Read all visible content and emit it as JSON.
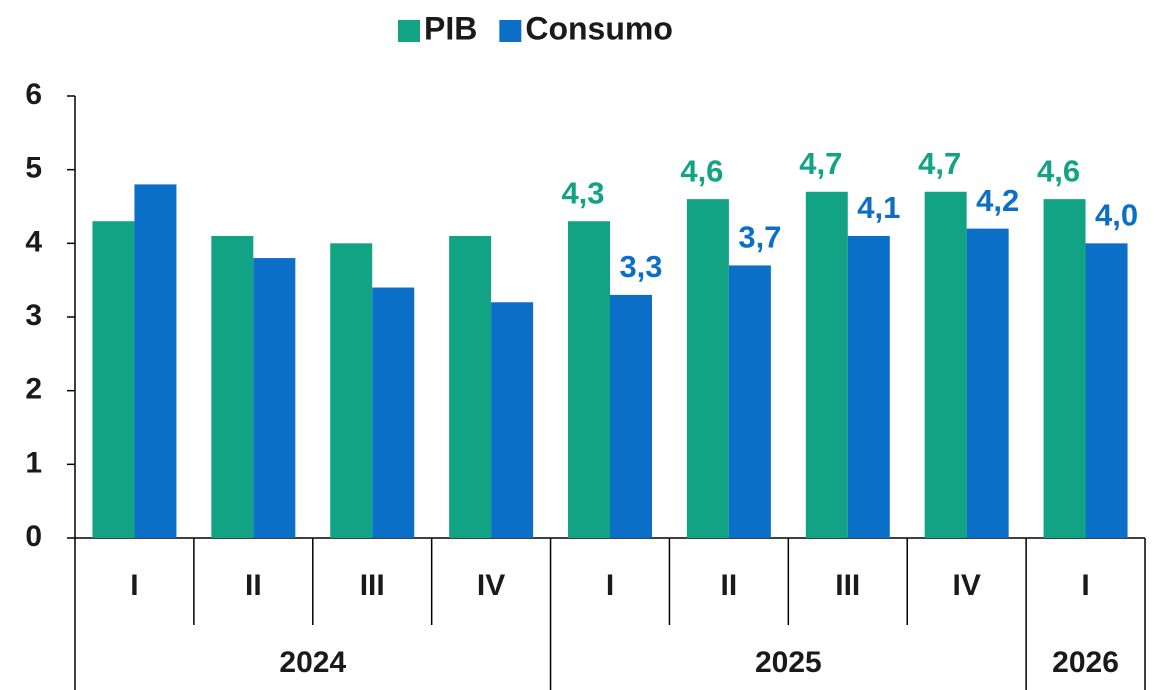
{
  "chart_data": {
    "type": "bar",
    "categories": [
      "I",
      "II",
      "III",
      "IV",
      "I",
      "II",
      "III",
      "IV",
      "I"
    ],
    "years": [
      "2024",
      null,
      null,
      null,
      "2025",
      null,
      null,
      null,
      "2026"
    ],
    "series": [
      {
        "name": "PIB",
        "color": "#12a385",
        "values": [
          4.3,
          4.1,
          4.0,
          4.1,
          4.3,
          4.6,
          4.7,
          4.7,
          4.6
        ],
        "value_labels": [
          null,
          null,
          null,
          null,
          "4,3",
          "4,6",
          "4,7",
          "4,7",
          "4,6"
        ]
      },
      {
        "name": "Consumo",
        "color": "#0b6fc7",
        "values": [
          4.8,
          3.8,
          3.4,
          3.2,
          3.3,
          3.7,
          4.1,
          4.2,
          4.0
        ],
        "value_labels": [
          null,
          null,
          null,
          null,
          "3,3",
          "3,7",
          "4,1",
          "4,2",
          "4,0"
        ]
      }
    ],
    "ylim": [
      0,
      6
    ],
    "yticks": [
      0,
      1,
      2,
      3,
      4,
      5,
      6
    ],
    "grid": false,
    "legend": "top"
  }
}
